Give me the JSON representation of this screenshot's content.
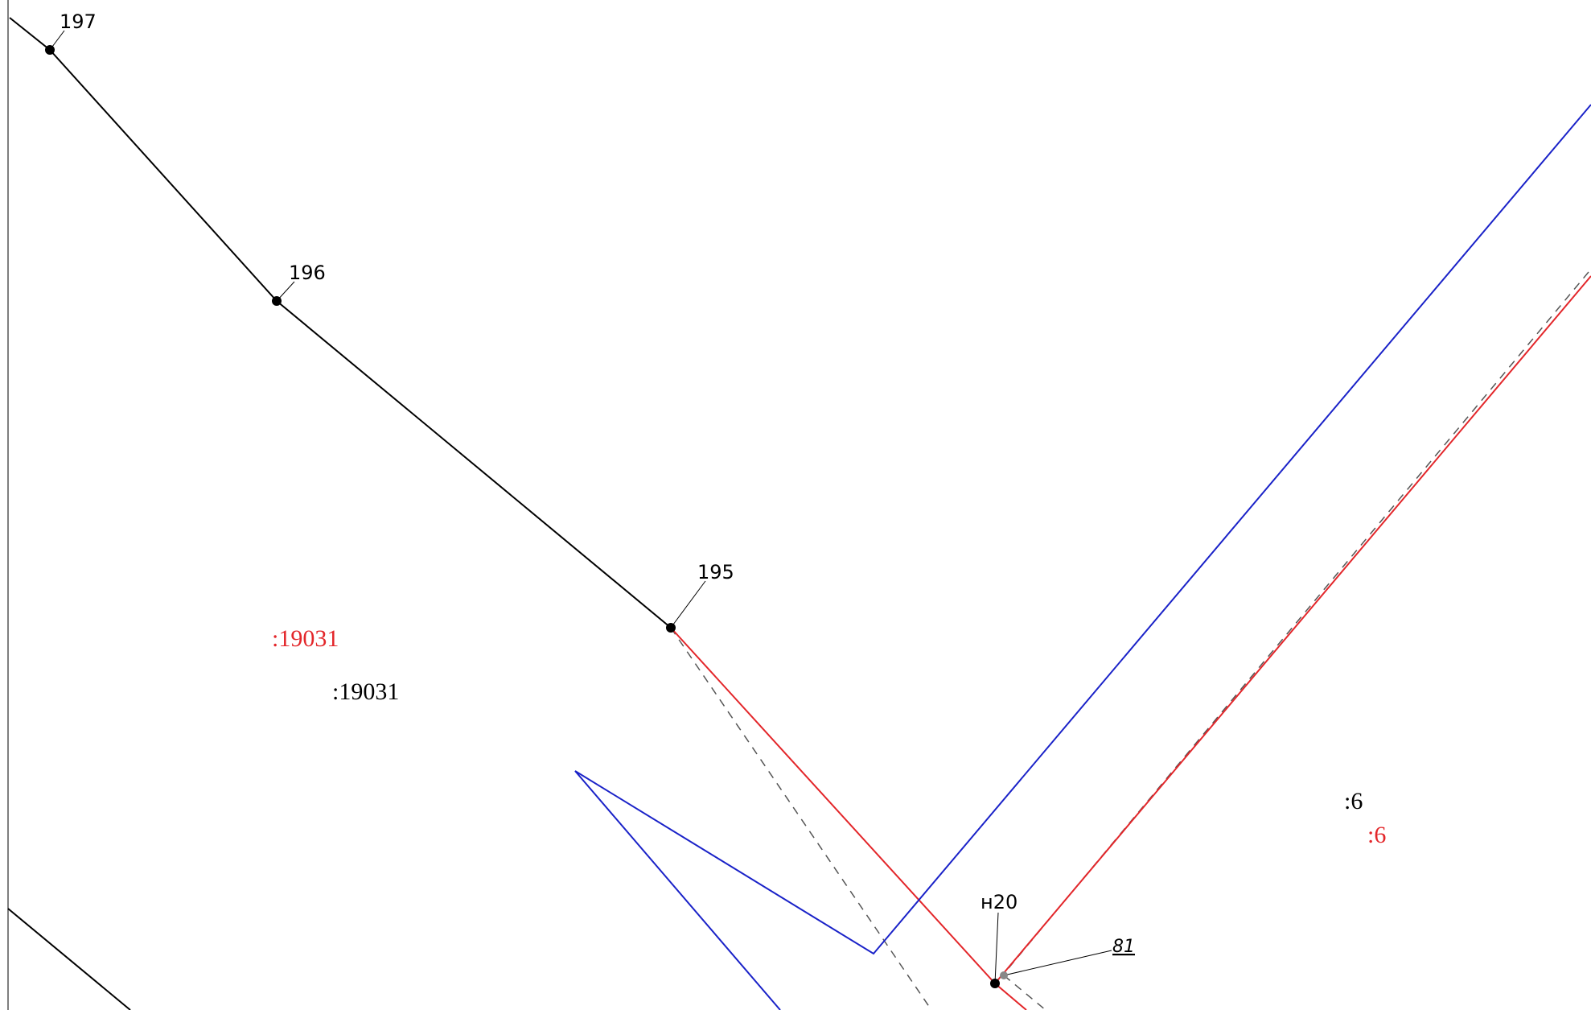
{
  "points": {
    "p197": "197",
    "p196": "196",
    "p195": "195",
    "pn20": "н20"
  },
  "parcels": {
    "existing_red": ":19031",
    "existing_black": ":19031",
    "east_black": ":6",
    "east_red": ":6"
  },
  "reference_label": "81",
  "colors": {
    "existing_boundary": "#000000",
    "new_boundary": "#e3262a",
    "zone_boundary": "#1a22c8",
    "dashed_old": "#555555",
    "red_label": "#e3262a",
    "black_label": "#000000"
  }
}
